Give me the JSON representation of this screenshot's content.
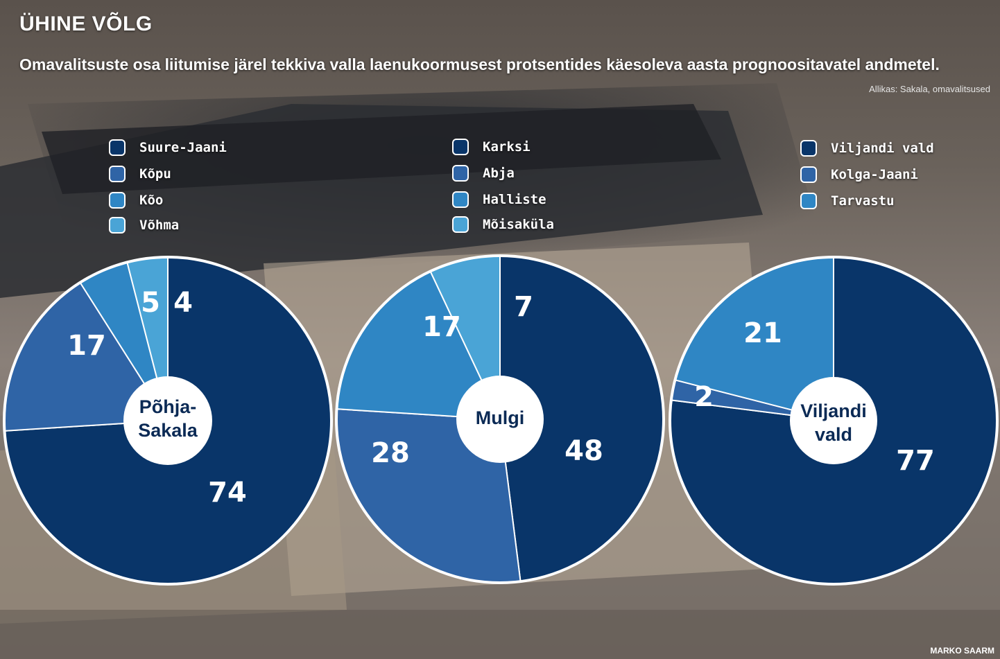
{
  "title": "ÜHINE VÕLG",
  "subtitle": "Omavalitsuste osa liitumise järel tekkiva valla laenukoormusest protsentides käesoleva aasta prognoositavatel andmetel.",
  "source": "Allikas: Sakala, omavalitsused",
  "credit": "MARKO SAARM",
  "colors": {
    "navy": "#093569",
    "mid": "#2f64a6",
    "blue": "#2f86c4",
    "light": "#4aa4d6"
  },
  "chart_data": [
    {
      "type": "pie",
      "title": "Põhja-Sakala",
      "center_lines": [
        "Põhja-",
        "Sakala"
      ],
      "categories": [
        "Suure-Jaani",
        "Kõpu",
        "Kõo",
        "Võhma"
      ],
      "values": [
        74,
        17,
        5,
        4
      ],
      "colors": [
        "#093569",
        "#2f64a6",
        "#2f86c4",
        "#4aa4d6"
      ]
    },
    {
      "type": "pie",
      "title": "Mulgi",
      "center_lines": [
        "Mulgi"
      ],
      "categories": [
        "Karksi",
        "Abja",
        "Halliste",
        "Mõisaküla"
      ],
      "values": [
        48,
        28,
        17,
        7
      ],
      "colors": [
        "#093569",
        "#2f64a6",
        "#2f86c4",
        "#4aa4d6"
      ]
    },
    {
      "type": "pie",
      "title": "Viljandi vald",
      "center_lines": [
        "Viljandi",
        "vald"
      ],
      "categories": [
        "Viljandi vald",
        "Kolga-Jaani",
        "Tarvastu"
      ],
      "values": [
        77,
        2,
        21
      ],
      "colors": [
        "#093569",
        "#2f64a6",
        "#2f86c4"
      ]
    }
  ]
}
